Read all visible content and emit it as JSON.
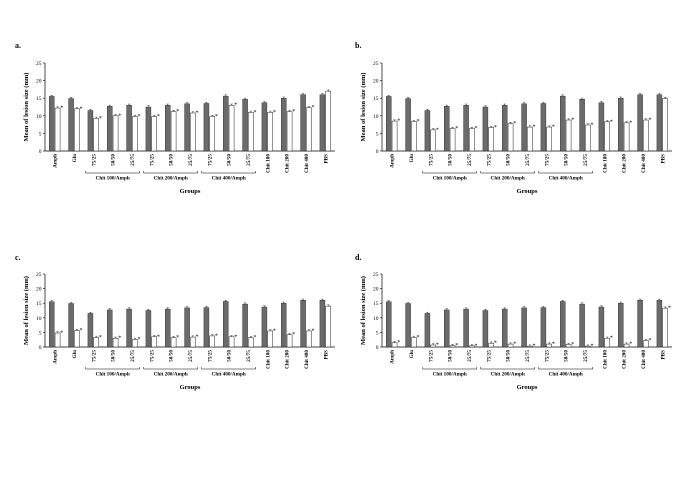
{
  "chart_data": [
    {
      "type": "bar",
      "panel_label": "a.",
      "ylabel": "Mean of lesion size (mm)",
      "xlabel": "Groups",
      "ylim": [
        0,
        25
      ],
      "yticks": [
        "0",
        "5",
        "10",
        "15",
        "20",
        "25"
      ],
      "categories": [
        "Amph",
        "Glu",
        "75/25",
        "50/50",
        "25/75",
        "75/25",
        "50/50",
        "25/75",
        "75/25",
        "50/50",
        "25/75",
        "Chit 100",
        "Chit 200",
        "Chit 400",
        "PBS"
      ],
      "category_groups": [
        {
          "label": "Chit 100/Amph",
          "start": 2,
          "end": 4
        },
        {
          "label": "Chit 200/Amph",
          "start": 5,
          "end": 7
        },
        {
          "label": "Chit 400/Amph",
          "start": 8,
          "end": 10
        }
      ],
      "series": [
        {
          "color": "#6b6b6b",
          "values": [
            15.5,
            14.9,
            11.5,
            12.7,
            13.0,
            12.5,
            13.0,
            13.4,
            13.5,
            15.6,
            14.7,
            13.7,
            15.0,
            16.0,
            16.0
          ]
        },
        {
          "color": "#ffffff",
          "values": [
            12.2,
            12.0,
            9.3,
            10.0,
            9.8,
            9.8,
            11.2,
            10.8,
            9.8,
            13.0,
            11.0,
            11.0,
            11.2,
            12.3,
            17.0
          ]
        }
      ],
      "significance_mark": "*",
      "significant": [
        true,
        true,
        true,
        true,
        true,
        true,
        true,
        true,
        true,
        true,
        true,
        true,
        true,
        true,
        false
      ]
    },
    {
      "type": "bar",
      "panel_label": "b.",
      "ylabel": "Mean of lesion size (mm)",
      "xlabel": "Groups",
      "ylim": [
        0,
        25
      ],
      "yticks": [
        "0",
        "5",
        "10",
        "15",
        "20",
        "25"
      ],
      "categories": [
        "Amph",
        "Glu",
        "75/25",
        "50/50",
        "25/75",
        "75/25",
        "50/50",
        "25/75",
        "75/25",
        "50/50",
        "25/75",
        "Chit 100",
        "Chit 200",
        "Chit 400",
        "PBS"
      ],
      "category_groups": [
        {
          "label": "Chit 100/Amph",
          "start": 2,
          "end": 4
        },
        {
          "label": "Chit 200/Amph",
          "start": 5,
          "end": 7
        },
        {
          "label": "Chit 400/Amph",
          "start": 8,
          "end": 10
        }
      ],
      "series": [
        {
          "color": "#6b6b6b",
          "values": [
            15.5,
            14.9,
            11.5,
            12.7,
            13.0,
            12.5,
            13.0,
            13.4,
            13.5,
            15.6,
            14.7,
            13.7,
            15.0,
            16.0,
            16.0
          ]
        },
        {
          "color": "#ffffff",
          "values": [
            8.5,
            8.4,
            6.0,
            6.4,
            6.4,
            6.7,
            7.8,
            6.8,
            6.8,
            8.8,
            7.4,
            8.3,
            8.0,
            8.8,
            14.9
          ]
        }
      ],
      "significance_mark": "*",
      "significant": [
        true,
        true,
        true,
        true,
        true,
        true,
        true,
        true,
        true,
        true,
        true,
        true,
        true,
        true,
        false
      ]
    },
    {
      "type": "bar",
      "panel_label": "c.",
      "ylabel": "Mean of lesion size (mm)",
      "xlabel": "Groups",
      "ylim": [
        0,
        25
      ],
      "yticks": [
        "0",
        "5",
        "10",
        "15",
        "20",
        "25"
      ],
      "categories": [
        "Amph",
        "Glu",
        "75/25",
        "50/50",
        "25/75",
        "75/25",
        "50/50",
        "25/75",
        "75/25",
        "50/50",
        "25/75",
        "Chit 100",
        "Chit 200",
        "Chit 400",
        "PBS"
      ],
      "category_groups": [
        {
          "label": "Chit 100/Amph",
          "start": 2,
          "end": 4
        },
        {
          "label": "Chit 200/Amph",
          "start": 5,
          "end": 7
        },
        {
          "label": "Chit 400/Amph",
          "start": 8,
          "end": 10
        }
      ],
      "series": [
        {
          "color": "#6b6b6b",
          "values": [
            15.5,
            14.9,
            11.5,
            12.7,
            13.0,
            12.5,
            13.0,
            13.4,
            13.5,
            15.6,
            14.7,
            13.7,
            15.0,
            16.0,
            16.0
          ]
        },
        {
          "color": "#ffffff",
          "values": [
            4.8,
            5.6,
            3.3,
            3.0,
            2.6,
            3.5,
            3.2,
            3.4,
            3.8,
            3.5,
            3.2,
            5.5,
            4.2,
            5.5,
            14.0
          ]
        }
      ],
      "significance_mark": "*",
      "significant": [
        true,
        true,
        true,
        true,
        true,
        true,
        true,
        true,
        true,
        true,
        true,
        true,
        true,
        true,
        false
      ]
    },
    {
      "type": "bar",
      "panel_label": "d.",
      "ylabel": "Mean of lesion size (mm)",
      "xlabel": "Groups",
      "ylim": [
        0,
        25
      ],
      "yticks": [
        "0",
        "5",
        "10",
        "15",
        "20",
        "25"
      ],
      "categories": [
        "Amph",
        "Glu",
        "75/25",
        "50/50",
        "25/75",
        "75/25",
        "50/50",
        "25/75",
        "75/25",
        "50/50",
        "25/75",
        "Chit 100",
        "Chit 200",
        "Chit 400",
        "PBS"
      ],
      "category_groups": [
        {
          "label": "Chit 100/Amph",
          "start": 2,
          "end": 4
        },
        {
          "label": "Chit 200/Amph",
          "start": 5,
          "end": 7
        },
        {
          "label": "Chit 400/Amph",
          "start": 8,
          "end": 10
        }
      ],
      "series": [
        {
          "color": "#6b6b6b",
          "values": [
            15.5,
            14.9,
            11.5,
            12.7,
            13.0,
            12.5,
            13.0,
            13.4,
            13.5,
            15.6,
            14.7,
            13.7,
            15.0,
            16.0,
            16.0
          ]
        },
        {
          "color": "#ffffff",
          "values": [
            1.5,
            3.3,
            0.7,
            0.5,
            0.4,
            1.3,
            1.0,
            0.3,
            1.0,
            0.9,
            0.3,
            3.0,
            1.0,
            2.2,
            13.3
          ]
        }
      ],
      "significance_mark": "*",
      "significant": [
        true,
        true,
        true,
        true,
        true,
        true,
        true,
        true,
        true,
        true,
        true,
        true,
        true,
        true,
        true
      ]
    }
  ]
}
